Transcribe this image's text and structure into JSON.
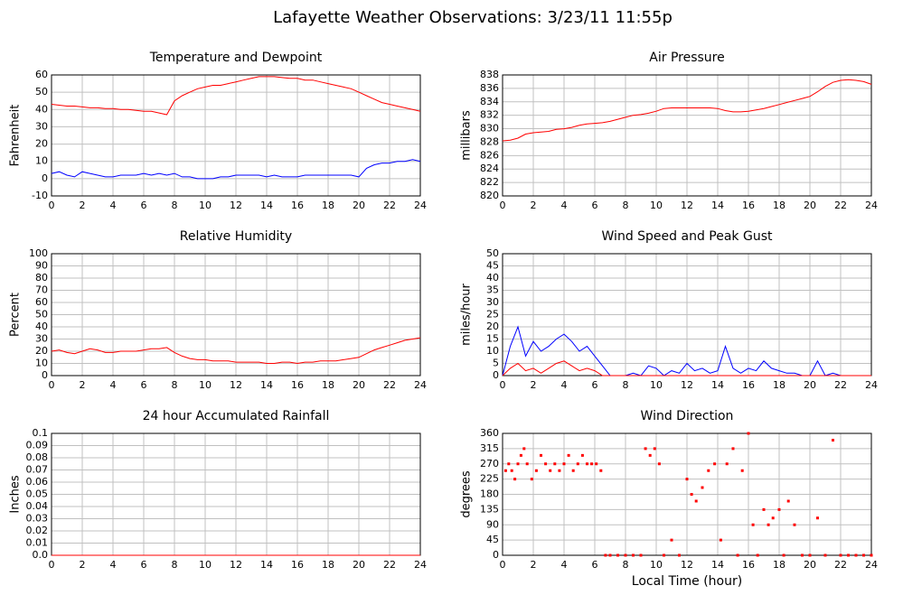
{
  "title": "Lafayette Weather Observations: 3/23/11 11:55p",
  "chart_data": [
    {
      "type": "line",
      "title": "Temperature and Dewpoint",
      "ylabel": "Fahrenheit",
      "x": [
        0,
        0.5,
        1,
        1.5,
        2,
        2.5,
        3,
        3.5,
        4,
        4.5,
        5,
        5.5,
        6,
        6.5,
        7,
        7.5,
        8,
        8.5,
        9,
        9.5,
        10,
        10.5,
        11,
        11.5,
        12,
        12.5,
        13,
        13.5,
        14,
        14.5,
        15,
        15.5,
        16,
        16.5,
        17,
        17.5,
        18,
        18.5,
        19,
        19.5,
        20,
        20.5,
        21,
        21.5,
        22,
        22.5,
        23,
        23.5,
        24
      ],
      "xlim": [
        0,
        24
      ],
      "xticks": [
        0,
        2,
        4,
        6,
        8,
        10,
        12,
        14,
        16,
        18,
        20,
        22,
        24
      ],
      "ylim": [
        -10,
        60
      ],
      "yticks": [
        -10,
        0,
        10,
        20,
        30,
        40,
        50,
        60
      ],
      "grid": true,
      "series": [
        {
          "color": "#ff0000",
          "values": [
            43,
            42.5,
            42,
            42,
            41.5,
            41,
            41,
            40.5,
            40.5,
            40,
            40,
            39.5,
            39,
            39,
            38,
            37,
            45,
            48,
            50,
            52,
            53,
            54,
            54,
            55,
            56,
            57,
            58,
            59,
            59,
            59,
            58.5,
            58,
            58,
            57,
            57,
            56,
            55,
            54,
            53,
            52,
            50,
            48,
            46,
            44,
            43,
            42,
            41,
            40,
            39
          ]
        },
        {
          "color": "#0000ff",
          "values": [
            3,
            4,
            2,
            1,
            4,
            3,
            2,
            1,
            1,
            2,
            2,
            2,
            3,
            2,
            3,
            2,
            3,
            1,
            1,
            0,
            0,
            0,
            1,
            1,
            2,
            2,
            2,
            2,
            1,
            2,
            1,
            1,
            1,
            2,
            2,
            2,
            2,
            2,
            2,
            2,
            1,
            6,
            8,
            9,
            9,
            10,
            10,
            11,
            10
          ]
        }
      ]
    },
    {
      "type": "line",
      "title": "Air Pressure",
      "ylabel": "millibars",
      "x": [
        0,
        0.5,
        1,
        1.5,
        2,
        2.5,
        3,
        3.5,
        4,
        4.5,
        5,
        5.5,
        6,
        6.5,
        7,
        7.5,
        8,
        8.5,
        9,
        9.5,
        10,
        10.5,
        11,
        11.5,
        12,
        12.5,
        13,
        13.5,
        14,
        14.5,
        15,
        15.5,
        16,
        16.5,
        17,
        17.5,
        18,
        18.5,
        19,
        19.5,
        20,
        20.5,
        21,
        21.5,
        22,
        22.5,
        23,
        23.5,
        24
      ],
      "xlim": [
        0,
        24
      ],
      "xticks": [
        0,
        2,
        4,
        6,
        8,
        10,
        12,
        14,
        16,
        18,
        20,
        22,
        24
      ],
      "ylim": [
        820,
        838
      ],
      "yticks": [
        820,
        822,
        824,
        826,
        828,
        830,
        832,
        834,
        836,
        838
      ],
      "grid": true,
      "series": [
        {
          "color": "#ff0000",
          "values": [
            828.2,
            828.3,
            828.6,
            829.2,
            829.4,
            829.5,
            829.6,
            829.9,
            830,
            830.2,
            830.5,
            830.7,
            830.8,
            830.9,
            831.1,
            831.4,
            831.7,
            832,
            832.1,
            832.3,
            832.6,
            833,
            833.1,
            833.1,
            833.1,
            833.1,
            833.1,
            833.1,
            833,
            832.7,
            832.5,
            832.5,
            832.6,
            832.8,
            833,
            833.3,
            833.6,
            833.9,
            834.2,
            834.5,
            834.8,
            835.5,
            836.3,
            836.9,
            837.2,
            837.3,
            837.2,
            837,
            836.6
          ]
        }
      ]
    },
    {
      "type": "line",
      "title": "Relative Humidity",
      "ylabel": "Percent",
      "x": [
        0,
        0.5,
        1,
        1.5,
        2,
        2.5,
        3,
        3.5,
        4,
        4.5,
        5,
        5.5,
        6,
        6.5,
        7,
        7.5,
        8,
        8.5,
        9,
        9.5,
        10,
        10.5,
        11,
        11.5,
        12,
        12.5,
        13,
        13.5,
        14,
        14.5,
        15,
        15.5,
        16,
        16.5,
        17,
        17.5,
        18,
        18.5,
        19,
        19.5,
        20,
        20.5,
        21,
        21.5,
        22,
        22.5,
        23,
        23.5,
        24
      ],
      "xlim": [
        0,
        24
      ],
      "xticks": [
        0,
        2,
        4,
        6,
        8,
        10,
        12,
        14,
        16,
        18,
        20,
        22,
        24
      ],
      "ylim": [
        0,
        100
      ],
      "yticks": [
        0,
        10,
        20,
        30,
        40,
        50,
        60,
        70,
        80,
        90,
        100
      ],
      "grid": true,
      "series": [
        {
          "color": "#ff0000",
          "values": [
            20,
            21,
            19,
            18,
            20,
            22,
            21,
            19,
            19,
            20,
            20,
            20,
            21,
            22,
            22,
            23,
            19,
            16,
            14,
            13,
            13,
            12,
            12,
            12,
            11,
            11,
            11,
            11,
            10,
            10,
            11,
            11,
            10,
            11,
            11,
            12,
            12,
            12,
            13,
            14,
            15,
            18,
            21,
            23,
            25,
            27,
            29,
            30,
            31
          ]
        }
      ]
    },
    {
      "type": "line",
      "title": "Wind Speed and Peak Gust",
      "ylabel": "miles/hour",
      "x": [
        0,
        0.5,
        1,
        1.5,
        2,
        2.5,
        3,
        3.5,
        4,
        4.5,
        5,
        5.5,
        6,
        6.5,
        7,
        7.5,
        8,
        8.5,
        9,
        9.5,
        10,
        10.5,
        11,
        11.5,
        12,
        12.5,
        13,
        13.5,
        14,
        14.5,
        15,
        15.5,
        16,
        16.5,
        17,
        17.5,
        18,
        18.5,
        19,
        19.5,
        20,
        20.5,
        21,
        21.5,
        22,
        22.5,
        23,
        23.5,
        24
      ],
      "xlim": [
        0,
        24
      ],
      "xticks": [
        0,
        2,
        4,
        6,
        8,
        10,
        12,
        14,
        16,
        18,
        20,
        22,
        24
      ],
      "ylim": [
        0,
        50
      ],
      "yticks": [
        0,
        5,
        10,
        15,
        20,
        25,
        30,
        35,
        40,
        45,
        50
      ],
      "grid": true,
      "series": [
        {
          "color": "#0000ff",
          "values": [
            0,
            12,
            20,
            8,
            14,
            10,
            12,
            15,
            17,
            14,
            10,
            12,
            8,
            4,
            0,
            0,
            0,
            1,
            0,
            4,
            3,
            0,
            2,
            1,
            5,
            2,
            3,
            1,
            2,
            12,
            3,
            1,
            3,
            2,
            6,
            3,
            2,
            1,
            1,
            0,
            0,
            6,
            0,
            1,
            0,
            0,
            0,
            0,
            0
          ]
        },
        {
          "color": "#ff0000",
          "values": [
            0,
            3,
            5,
            2,
            3,
            1,
            3,
            5,
            6,
            4,
            2,
            3,
            2,
            0,
            0,
            0,
            0,
            0,
            0,
            0,
            0,
            0,
            0,
            0,
            0,
            0,
            0,
            0,
            0,
            0,
            0,
            0,
            0,
            0,
            0,
            0,
            0,
            0,
            0,
            0,
            0,
            0,
            0,
            0,
            0,
            0,
            0,
            0,
            0
          ]
        }
      ]
    },
    {
      "type": "line",
      "title": "24 hour Accumulated Rainfall",
      "ylabel": "Inches",
      "x": [
        0,
        24
      ],
      "xlim": [
        0,
        24
      ],
      "xticks": [
        0,
        2,
        4,
        6,
        8,
        10,
        12,
        14,
        16,
        18,
        20,
        22,
        24
      ],
      "ylim": [
        0,
        0.1
      ],
      "yticks": [
        {
          "value": 0,
          "label": "0.0"
        },
        0.01,
        0.02,
        0.03,
        0.04,
        0.05,
        0.06,
        0.07,
        0.08,
        0.09,
        0.1
      ],
      "grid": true,
      "series": [
        {
          "color": "#ff0000",
          "values": [
            0,
            0
          ]
        }
      ]
    },
    {
      "type": "scatter",
      "title": "Wind Direction",
      "ylabel": "degrees",
      "xlabel": "Local Time (hour)",
      "x": [
        0.2,
        0.4,
        0.6,
        0.8,
        1.0,
        1.2,
        1.4,
        1.6,
        1.9,
        2.2,
        2.5,
        2.8,
        3.1,
        3.4,
        3.7,
        4.0,
        4.3,
        4.6,
        4.9,
        5.2,
        5.5,
        5.8,
        6.1,
        6.4,
        6.7,
        7.0,
        7.5,
        8.0,
        8.5,
        9.0,
        9.3,
        9.6,
        9.9,
        10.2,
        10.5,
        11.0,
        11.5,
        12.0,
        12.3,
        12.6,
        13.0,
        13.4,
        13.8,
        14.2,
        14.6,
        15.0,
        15.3,
        15.6,
        16.0,
        16.3,
        16.6,
        17.0,
        17.3,
        17.6,
        18.0,
        18.3,
        18.6,
        19.0,
        19.5,
        20.0,
        20.5,
        21.0,
        21.5,
        22.0,
        22.5,
        23.0,
        23.5,
        24.0
      ],
      "xlim": [
        0,
        24
      ],
      "xticks": [
        0,
        2,
        4,
        6,
        8,
        10,
        12,
        14,
        16,
        18,
        20,
        22,
        24
      ],
      "ylim": [
        0,
        360
      ],
      "yticks": [
        0,
        45,
        90,
        135,
        180,
        225,
        270,
        315,
        360
      ],
      "grid": true,
      "series": [
        {
          "color": "#ff0000",
          "values": [
            250,
            270,
            250,
            225,
            270,
            295,
            315,
            270,
            225,
            250,
            295,
            270,
            250,
            270,
            250,
            270,
            295,
            250,
            270,
            295,
            270,
            270,
            270,
            250,
            0,
            0,
            0,
            0,
            0,
            0,
            315,
            295,
            315,
            270,
            0,
            45,
            0,
            225,
            180,
            160,
            200,
            250,
            270,
            45,
            270,
            315,
            0,
            250,
            360,
            90,
            0,
            135,
            90,
            110,
            135,
            0,
            160,
            90,
            0,
            0,
            110,
            0,
            340,
            0,
            0,
            0,
            0,
            0
          ]
        }
      ]
    }
  ]
}
